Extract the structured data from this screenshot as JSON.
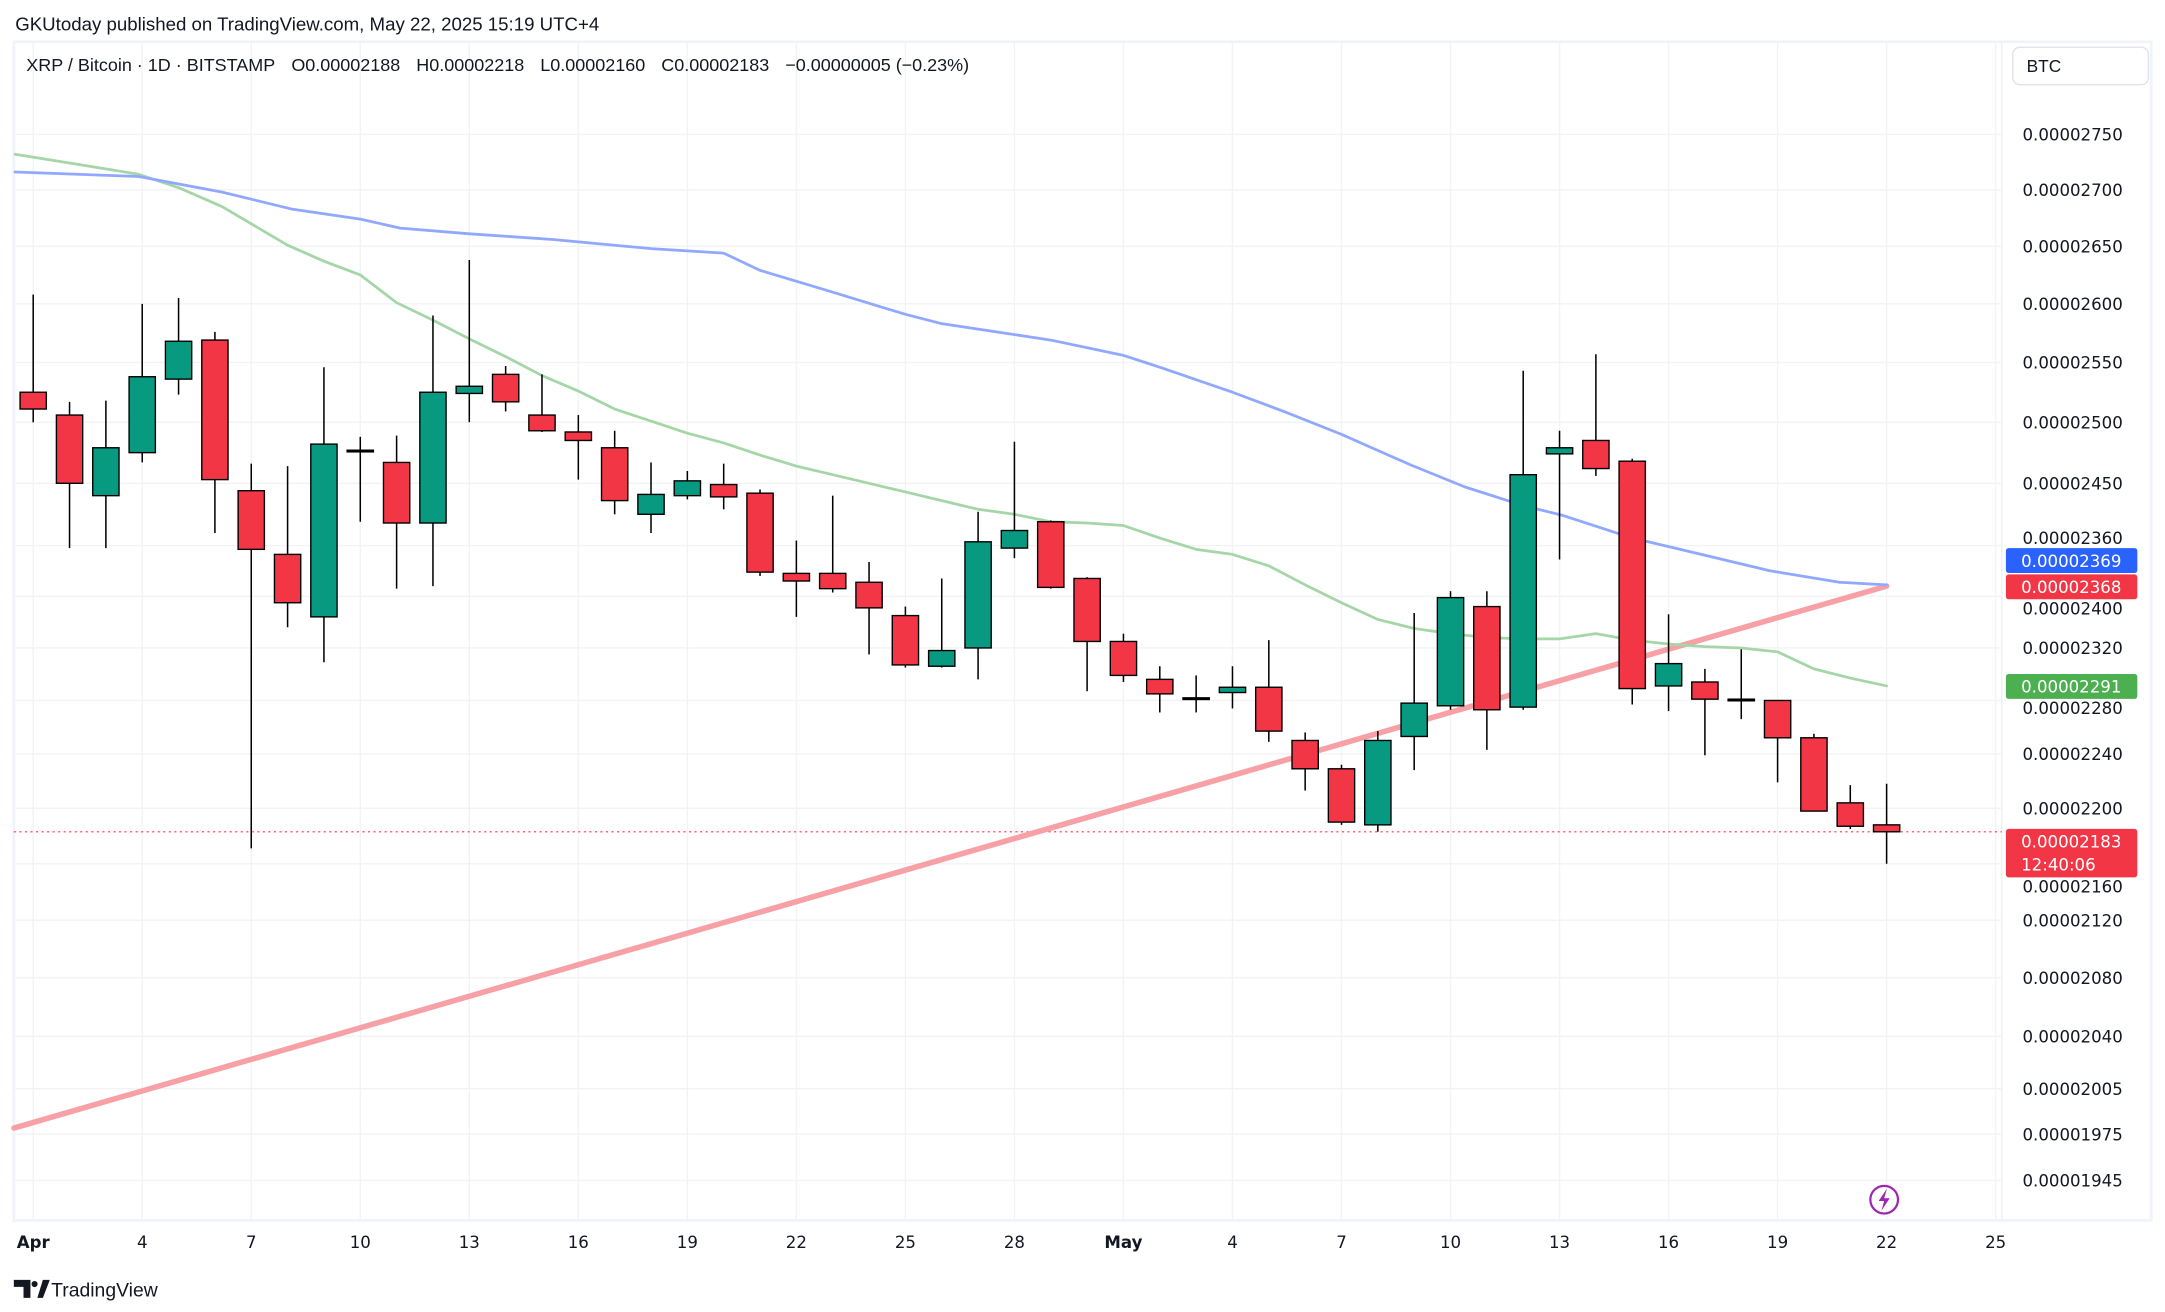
{
  "publisher": "GKUtoday published on TradingView.com, May 22, 2025 15:19 UTC+4",
  "legend": {
    "symbol": "XRP / Bitcoin · 1D · BITSTAMP",
    "open": "O0.00002188",
    "high": "H0.00002218",
    "low": "L0.00002160",
    "close": "C0.00002183",
    "change": "−0.00000005 (−0.23%)"
  },
  "currency_button": "BTC",
  "brand": "TradingView",
  "colors": {
    "up": "#089981",
    "down": "#F23645",
    "ma_slow": "#90A8FF",
    "ma_fast": "#A5D6A7",
    "trendline": "#F7A1A7",
    "label_blue": "#2962FF",
    "label_red": "#F23645",
    "label_green": "#4CAF50"
  },
  "price_labels": [
    {
      "price": 2.369e-05,
      "text": "0.00002369",
      "color": "#2962FF"
    },
    {
      "price": 2.368e-05,
      "text": "0.00002368",
      "color": "#F23645"
    },
    {
      "price": 2.291e-05,
      "text": "0.00002291",
      "color": "#4CAF50"
    },
    {
      "price": 2.183e-05,
      "text": "0.00002183",
      "sub": "12:40:06",
      "color": "#F23645"
    }
  ],
  "chart_data": {
    "type": "candlestick",
    "title": "XRP / Bitcoin · 1D · BITSTAMP",
    "yscale": "log",
    "ylim": [
      1930,
      2790
    ],
    "y_unit": "1e-8 BTC",
    "y_ticks": [
      "0.00002750",
      "0.00002700",
      "0.00002650",
      "0.00002600",
      "0.00002550",
      "0.00002500",
      "0.00002450",
      "0.00002400",
      "0.00002360",
      "0.00002320",
      "0.00002280",
      "0.00002240",
      "0.00002200",
      "0.00002160",
      "0.00002120",
      "0.00002080",
      "0.00002040",
      "0.00002005",
      "0.00001975",
      "0.00001945"
    ],
    "x_ticks": [
      {
        "day": 0,
        "label": "Apr"
      },
      {
        "day": 3,
        "label": "4"
      },
      {
        "day": 6,
        "label": "7"
      },
      {
        "day": 9,
        "label": "10"
      },
      {
        "day": 12,
        "label": "13"
      },
      {
        "day": 15,
        "label": "16"
      },
      {
        "day": 18,
        "label": "19"
      },
      {
        "day": 21,
        "label": "22"
      },
      {
        "day": 24,
        "label": "25"
      },
      {
        "day": 27,
        "label": "28"
      },
      {
        "day": 30,
        "label": "May"
      },
      {
        "day": 33,
        "label": "4"
      },
      {
        "day": 36,
        "label": "7"
      },
      {
        "day": 39,
        "label": "10"
      },
      {
        "day": 42,
        "label": "13"
      },
      {
        "day": 45,
        "label": "16"
      },
      {
        "day": 48,
        "label": "19"
      },
      {
        "day": 51,
        "label": "22"
      },
      {
        "day": 54,
        "label": "25"
      }
    ],
    "candles_ohlc": [
      [
        2525,
        2608,
        2500,
        2511
      ],
      [
        2506,
        2517,
        2398,
        2450
      ],
      [
        2440,
        2518,
        2398,
        2479
      ],
      [
        2475,
        2600,
        2467,
        2538
      ],
      [
        2536,
        2605,
        2523,
        2568
      ],
      [
        2569,
        2576,
        2410,
        2453
      ],
      [
        2444,
        2466,
        2171,
        2397
      ],
      [
        2393,
        2464,
        2336,
        2355
      ],
      [
        2344,
        2546,
        2309,
        2482
      ],
      [
        2477,
        2488,
        2419,
        2477
      ],
      [
        2467,
        2489,
        2366,
        2418
      ],
      [
        2418,
        2590,
        2368,
        2525
      ],
      [
        2524,
        2638,
        2500,
        2530
      ],
      [
        2540,
        2547,
        2509,
        2517
      ],
      [
        2506,
        2540,
        2492,
        2493
      ],
      [
        2492,
        2506,
        2453,
        2485
      ],
      [
        2479,
        2493,
        2425,
        2436
      ],
      [
        2425,
        2467,
        2410,
        2441
      ],
      [
        2440,
        2460,
        2437,
        2452
      ],
      [
        2449,
        2466,
        2429,
        2439
      ],
      [
        2442,
        2445,
        2376,
        2379
      ],
      [
        2378,
        2404,
        2344,
        2372
      ],
      [
        2378,
        2440,
        2363,
        2366
      ],
      [
        2371,
        2387,
        2315,
        2351
      ],
      [
        2345,
        2352,
        2305,
        2307
      ],
      [
        2306,
        2374,
        2305,
        2318
      ],
      [
        2320,
        2427,
        2296,
        2403
      ],
      [
        2398,
        2484,
        2390,
        2412
      ],
      [
        2419,
        2420,
        2366,
        2367
      ],
      [
        2374,
        2375,
        2287,
        2325
      ],
      [
        2325,
        2331,
        2294,
        2299
      ],
      [
        2296,
        2306,
        2271,
        2285
      ],
      [
        2282,
        2299,
        2271,
        2282
      ],
      [
        2286,
        2306,
        2274,
        2290
      ],
      [
        2290,
        2326,
        2249,
        2257
      ],
      [
        2250,
        2256,
        2213,
        2229
      ],
      [
        2229,
        2232,
        2188,
        2190
      ],
      [
        2188,
        2257,
        2183,
        2250
      ],
      [
        2253,
        2347,
        2228,
        2278
      ],
      [
        2276,
        2364,
        2273,
        2359
      ],
      [
        2352,
        2364,
        2243,
        2273
      ],
      [
        2275,
        2543,
        2273,
        2457
      ],
      [
        2474,
        2493,
        2389,
        2479
      ],
      [
        2485,
        2557,
        2456,
        2462
      ],
      [
        2468,
        2470,
        2277,
        2289
      ],
      [
        2291,
        2346,
        2272,
        2308
      ],
      [
        2294,
        2304,
        2239,
        2281
      ],
      [
        2281,
        2319,
        2266,
        2281
      ],
      [
        2280,
        2280,
        2219,
        2252
      ],
      [
        2252,
        2255,
        2198,
        2198
      ],
      [
        2204,
        2217,
        2185,
        2187
      ],
      [
        2188,
        2218,
        2160,
        2183
      ]
    ],
    "ma_slow": [
      [
        -0.5,
        2716
      ],
      [
        2.9,
        2712
      ],
      [
        5.2,
        2698
      ],
      [
        7.1,
        2683
      ],
      [
        9,
        2674
      ],
      [
        10.1,
        2666
      ],
      [
        12,
        2661
      ],
      [
        14.3,
        2656
      ],
      [
        17,
        2648
      ],
      [
        19,
        2644
      ],
      [
        20,
        2629
      ],
      [
        21.9,
        2611
      ],
      [
        24,
        2591
      ],
      [
        25,
        2583
      ],
      [
        26.5,
        2576
      ],
      [
        28,
        2569
      ],
      [
        30,
        2556
      ],
      [
        31.1,
        2545
      ],
      [
        33,
        2525
      ],
      [
        34.5,
        2508
      ],
      [
        36,
        2490
      ],
      [
        37.9,
        2465
      ],
      [
        39.4,
        2447
      ],
      [
        41,
        2432
      ],
      [
        42.1,
        2424
      ],
      [
        44,
        2406
      ],
      [
        45.9,
        2393
      ],
      [
        47.8,
        2380
      ],
      [
        49.7,
        2371
      ],
      [
        51,
        2369
      ]
    ],
    "ma_fast": [
      [
        -0.5,
        2732
      ],
      [
        1.4,
        2722
      ],
      [
        2.9,
        2714
      ],
      [
        4,
        2702
      ],
      [
        5.2,
        2685
      ],
      [
        7,
        2651
      ],
      [
        8,
        2637
      ],
      [
        9,
        2625
      ],
      [
        10,
        2601
      ],
      [
        11,
        2586
      ],
      [
        12,
        2570
      ],
      [
        13,
        2555
      ],
      [
        14,
        2539
      ],
      [
        15,
        2526
      ],
      [
        16,
        2511
      ],
      [
        17,
        2501
      ],
      [
        18,
        2491
      ],
      [
        19,
        2483
      ],
      [
        20,
        2473
      ],
      [
        21,
        2464
      ],
      [
        22,
        2457
      ],
      [
        23,
        2450
      ],
      [
        24,
        2443
      ],
      [
        25,
        2436
      ],
      [
        26,
        2429
      ],
      [
        27,
        2425
      ],
      [
        28,
        2419
      ],
      [
        29,
        2418
      ],
      [
        30,
        2416
      ],
      [
        31,
        2406
      ],
      [
        32,
        2397
      ],
      [
        33,
        2393
      ],
      [
        34,
        2384
      ],
      [
        35,
        2369
      ],
      [
        36,
        2355
      ],
      [
        37,
        2342
      ],
      [
        38,
        2335
      ],
      [
        39,
        2331
      ],
      [
        40,
        2328
      ],
      [
        41,
        2327
      ],
      [
        42,
        2327
      ],
      [
        43,
        2331
      ],
      [
        44,
        2326
      ],
      [
        45,
        2323
      ],
      [
        46,
        2321
      ],
      [
        47,
        2320
      ],
      [
        48,
        2317
      ],
      [
        49,
        2304
      ],
      [
        50,
        2297
      ],
      [
        51,
        2291
      ]
    ],
    "trendline": [
      [
        -0.53,
        1979
      ],
      [
        51,
        2368
      ]
    ],
    "last_price": 2183
  }
}
